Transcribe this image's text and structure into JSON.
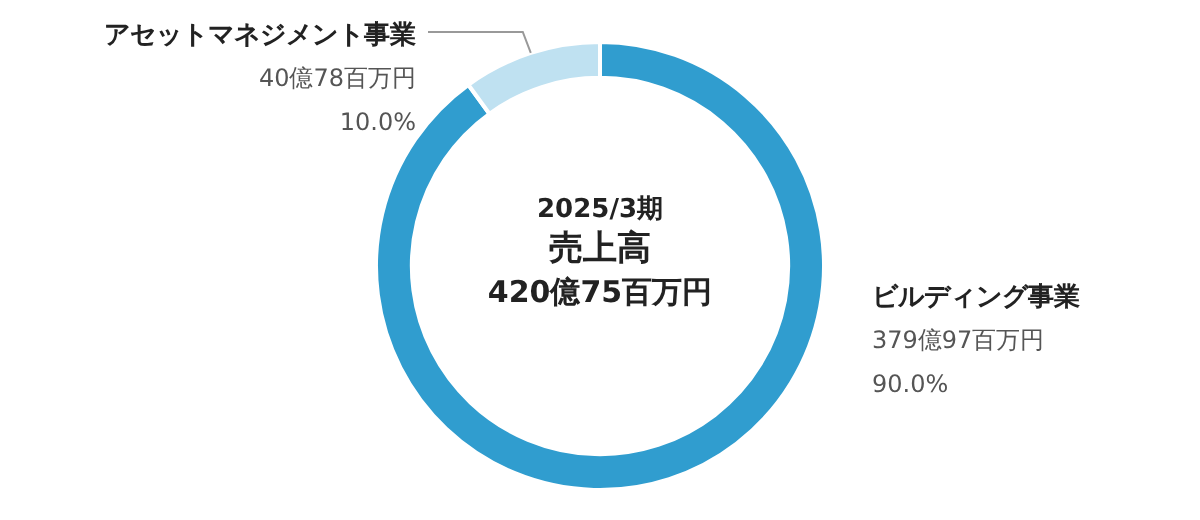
{
  "chart_data": {
    "type": "donut",
    "title": "2025/3期",
    "subtitle": "売上高",
    "annotations": [
      "420億75百万円"
    ],
    "categories": [
      "ビルディング事業",
      "アセットマネジメント事業"
    ],
    "values": [
      90.0,
      10.0
    ],
    "value_labels": [
      "379億97百万円\n90.0%",
      "40億78百万円\n10.0%"
    ],
    "colors": [
      "#309dcf",
      "#bfe1f1"
    ]
  }
}
